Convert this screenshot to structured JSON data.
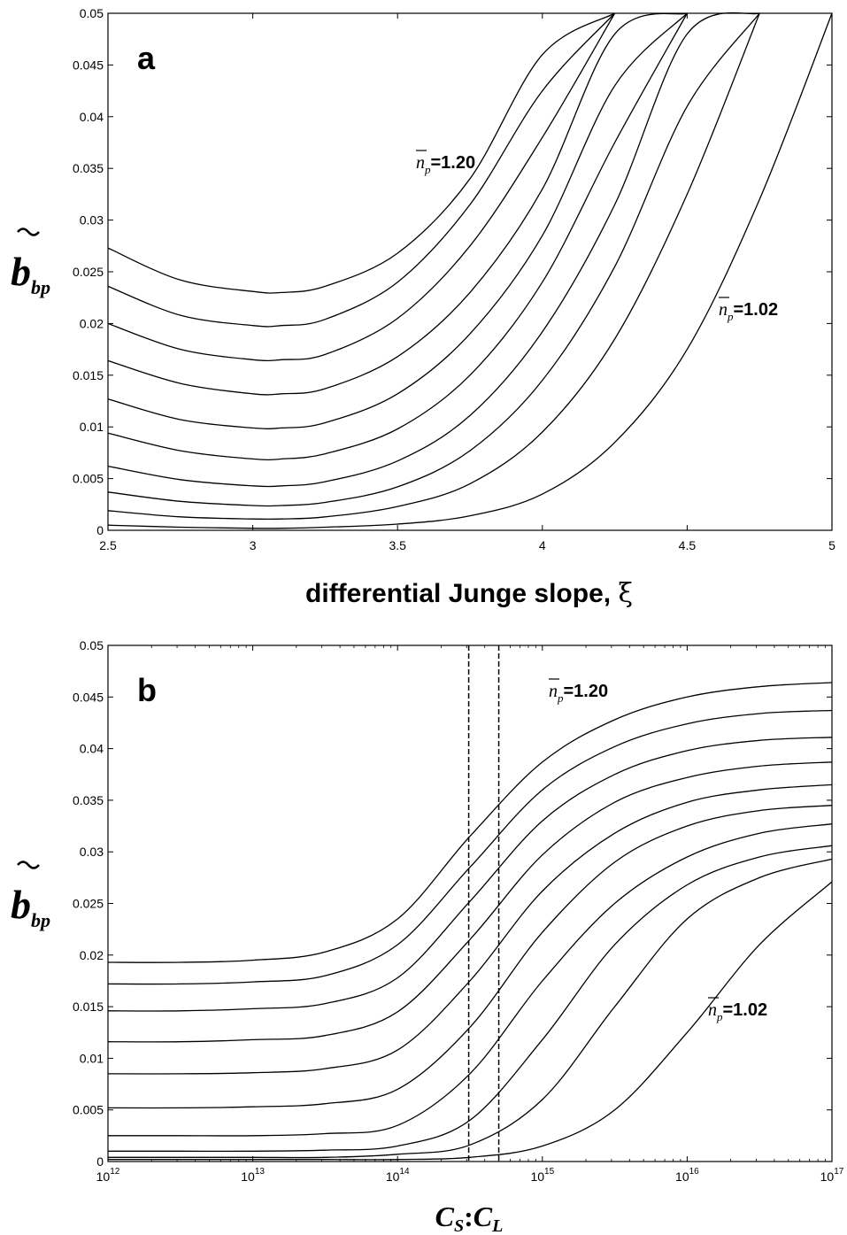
{
  "chart_data": [
    {
      "type": "line",
      "panel_label": "a",
      "xlabel_text": "differential Junge slope, ",
      "xlabel_symbol": "ξ",
      "ylabel": {
        "main": "b",
        "sub": "bp"
      },
      "xlim": [
        2.5,
        5
      ],
      "ylim": [
        0,
        0.05
      ],
      "x_ticks": [
        "2.5",
        "3",
        "3.5",
        "4",
        "4.5",
        "5"
      ],
      "y_ticks": [
        "0",
        "0.005",
        "0.01",
        "0.015",
        "0.02",
        "0.025",
        "0.03",
        "0.035",
        "0.04",
        "0.045",
        "0.05"
      ],
      "x": [
        2.5,
        2.75,
        3.0,
        3.1,
        3.25,
        3.5,
        3.75,
        4.0,
        4.25,
        4.5,
        4.75,
        5.0
      ],
      "series": [
        {
          "values": [
            0.0005,
            0.0003,
            0.0002,
            0.0002,
            0.0003,
            0.0006,
            0.0014,
            0.0035,
            0.0085,
            0.0175,
            0.032,
            0.05
          ]
        },
        {
          "values": [
            0.0019,
            0.0013,
            0.0011,
            0.0011,
            0.0013,
            0.0023,
            0.0045,
            0.0095,
            0.0185,
            0.0325,
            0.05,
            0.05
          ]
        },
        {
          "values": [
            0.0037,
            0.0028,
            0.0024,
            0.0024,
            0.0027,
            0.0042,
            0.0077,
            0.0145,
            0.0255,
            0.041,
            0.05,
            0.05
          ]
        },
        {
          "values": [
            0.0062,
            0.0049,
            0.0043,
            0.0043,
            0.0047,
            0.0067,
            0.0111,
            0.0192,
            0.0315,
            0.048,
            0.05,
            0.05
          ]
        },
        {
          "values": [
            0.0094,
            0.0077,
            0.0069,
            0.0069,
            0.0074,
            0.0098,
            0.015,
            0.024,
            0.0375,
            0.05,
            0.05,
            0.05
          ]
        },
        {
          "values": [
            0.0127,
            0.0107,
            0.0099,
            0.0099,
            0.0104,
            0.0132,
            0.019,
            0.0285,
            0.043,
            0.05,
            0.05,
            0.05
          ]
        },
        {
          "values": [
            0.0164,
            0.0142,
            0.0132,
            0.0132,
            0.0137,
            0.0168,
            0.023,
            0.033,
            0.048,
            0.05,
            0.05,
            0.05
          ]
        },
        {
          "values": [
            0.02,
            0.0175,
            0.0165,
            0.0165,
            0.017,
            0.0205,
            0.0275,
            0.038,
            0.05,
            0.05,
            0.05,
            0.05
          ]
        },
        {
          "values": [
            0.0236,
            0.0208,
            0.0198,
            0.0198,
            0.0204,
            0.024,
            0.0315,
            0.0425,
            0.05,
            0.05,
            0.05,
            0.05
          ]
        },
        {
          "values": [
            0.0273,
            0.0242,
            0.0231,
            0.023,
            0.0236,
            0.0268,
            0.034,
            0.046,
            0.05,
            0.05,
            0.05,
            0.05
          ]
        }
      ],
      "annotations": [
        {
          "label_sym": "n",
          "label_sub": "p",
          "label_val": "=1.20"
        },
        {
          "label_sym": "n",
          "label_sub": "p",
          "label_val": "=1.02"
        }
      ]
    },
    {
      "type": "line",
      "panel_label": "b",
      "xscale": "log",
      "xlabel": {
        "c1": "C",
        "s1": "S",
        "sep": ":",
        "c2": "C",
        "s2": "L"
      },
      "ylabel": {
        "main": "b",
        "sub": "bp"
      },
      "xlim": [
        1000000000000.0,
        1e+17
      ],
      "ylim": [
        0,
        0.05
      ],
      "x_ticks": [
        {
          "base": "10",
          "exp": "12"
        },
        {
          "base": "10",
          "exp": "13"
        },
        {
          "base": "10",
          "exp": "14"
        },
        {
          "base": "10",
          "exp": "15"
        },
        {
          "base": "10",
          "exp": "16"
        },
        {
          "base": "10",
          "exp": "17"
        }
      ],
      "y_ticks": [
        "0",
        "0.005",
        "0.01",
        "0.015",
        "0.02",
        "0.025",
        "0.03",
        "0.035",
        "0.04",
        "0.045",
        "0.05"
      ],
      "x": [
        1000000000000.0,
        3160000000000.0,
        10000000000000.0,
        31600000000000.0,
        100000000000000.0,
        316000000000000.0,
        1000000000000000.0,
        3160000000000000.0,
        1e+16,
        3.16e+16,
        1e+17
      ],
      "series": [
        {
          "values": [
            0.0002,
            0.0002,
            0.0002,
            0.0002,
            0.0002,
            0.0004,
            0.0015,
            0.005,
            0.0125,
            0.021,
            0.0271
          ]
        },
        {
          "values": [
            0.0004,
            0.0004,
            0.0004,
            0.0004,
            0.0007,
            0.0016,
            0.006,
            0.015,
            0.0235,
            0.0275,
            0.0293
          ]
        },
        {
          "values": [
            0.001,
            0.001,
            0.001,
            0.0011,
            0.0015,
            0.004,
            0.0118,
            0.021,
            0.0268,
            0.0295,
            0.0306
          ]
        },
        {
          "values": [
            0.0025,
            0.0025,
            0.0025,
            0.0027,
            0.0035,
            0.0085,
            0.0175,
            0.025,
            0.0295,
            0.0318,
            0.0327
          ]
        },
        {
          "values": [
            0.0052,
            0.0052,
            0.0053,
            0.0056,
            0.007,
            0.013,
            0.0222,
            0.029,
            0.0325,
            0.034,
            0.0345
          ]
        },
        {
          "values": [
            0.0085,
            0.0085,
            0.0086,
            0.009,
            0.0108,
            0.0175,
            0.0262,
            0.0318,
            0.0348,
            0.036,
            0.0365
          ]
        },
        {
          "values": [
            0.0116,
            0.0116,
            0.0118,
            0.0122,
            0.0145,
            0.0215,
            0.0297,
            0.0348,
            0.0372,
            0.0383,
            0.0387
          ]
        },
        {
          "values": [
            0.0146,
            0.0146,
            0.0148,
            0.0153,
            0.0178,
            0.0252,
            0.033,
            0.0375,
            0.0398,
            0.0408,
            0.0411
          ]
        },
        {
          "values": [
            0.0172,
            0.0172,
            0.0174,
            0.018,
            0.021,
            0.0285,
            0.036,
            0.0402,
            0.0424,
            0.0434,
            0.0437
          ]
        },
        {
          "values": [
            0.0193,
            0.0193,
            0.0195,
            0.0203,
            0.0235,
            0.0315,
            0.0387,
            0.0428,
            0.045,
            0.046,
            0.0464
          ]
        }
      ],
      "vlines": [
        310000000000000.0,
        500000000000000.0
      ],
      "annotations": [
        {
          "label_sym": "n",
          "label_sub": "p",
          "label_val": "=1.20"
        },
        {
          "label_sym": "n",
          "label_sub": "p",
          "label_val": "=1.02"
        }
      ]
    }
  ]
}
